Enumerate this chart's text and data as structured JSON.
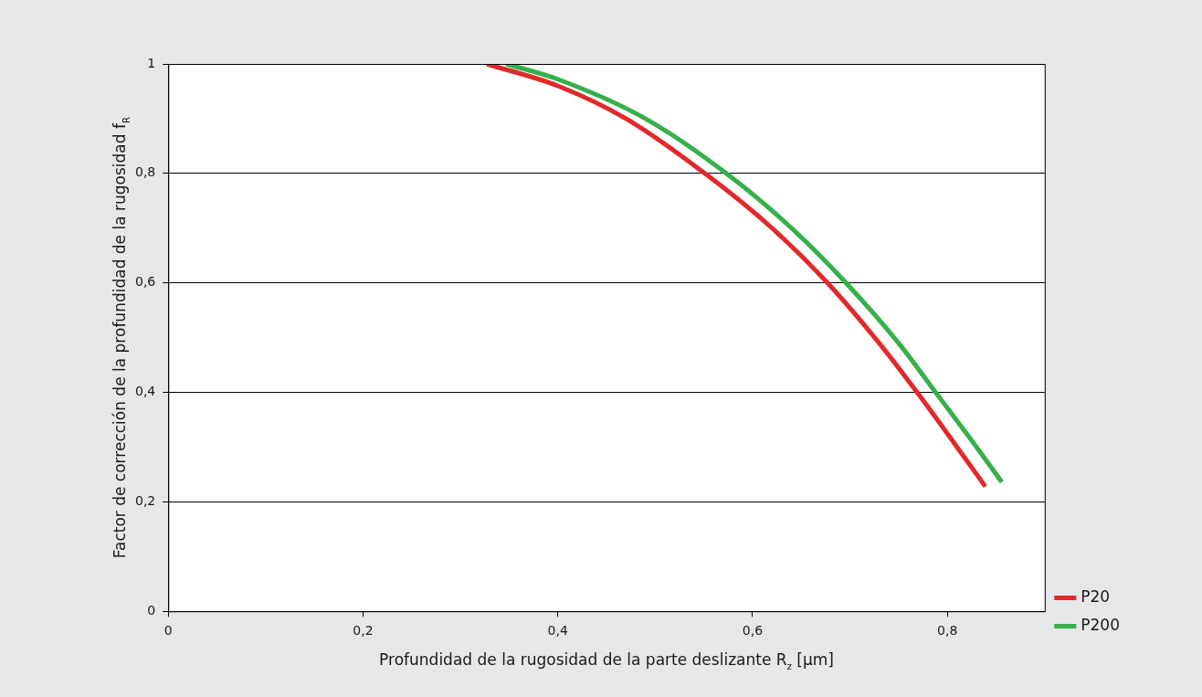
{
  "chart_data": {
    "type": "line",
    "xlabel": "Profundidad de la rugosidad de la parte deslizante R$_{z}$ [µm]",
    "ylabel": "Factor de corrección de la profundidad de la rugosidad f$_{R}$",
    "xlim": [
      0,
      0.9
    ],
    "ylim": [
      0,
      1
    ],
    "xticks": [
      0,
      {
        "value": 0.2,
        "label": "0,2"
      },
      {
        "value": 0.4,
        "label": "0,4"
      },
      {
        "value": 0.6,
        "label": "0,6"
      },
      {
        "value": 0.8,
        "label": "0,8"
      }
    ],
    "yticks": [
      0,
      {
        "value": 0.2,
        "label": "0,2"
      },
      {
        "value": 0.4,
        "label": "0,4"
      },
      {
        "value": 0.6,
        "label": "0,6"
      },
      {
        "value": 0.8,
        "label": "0,8"
      },
      1
    ],
    "grid": "y",
    "legend": "right",
    "marker": "none",
    "line_style": "solid",
    "series": [
      {
        "name": "P20",
        "color": "#e3282a",
        "x": [
          0.327,
          0.4,
          0.47,
          0.551,
          0.62,
          0.677,
          0.73,
          0.769,
          0.81,
          0.839
        ],
        "values": [
          1,
          0.96,
          0.9,
          0.8,
          0.7,
          0.6,
          0.49,
          0.4,
          0.3,
          0.228
        ]
      },
      {
        "name": "P200",
        "color": "#35b04a",
        "x": [
          0.347,
          0.4,
          0.49,
          0.573,
          0.64,
          0.696,
          0.75,
          0.788,
          0.83,
          0.856
        ],
        "values": [
          1,
          0.972,
          0.9,
          0.8,
          0.7,
          0.6,
          0.49,
          0.4,
          0.3,
          0.236
        ]
      }
    ]
  }
}
